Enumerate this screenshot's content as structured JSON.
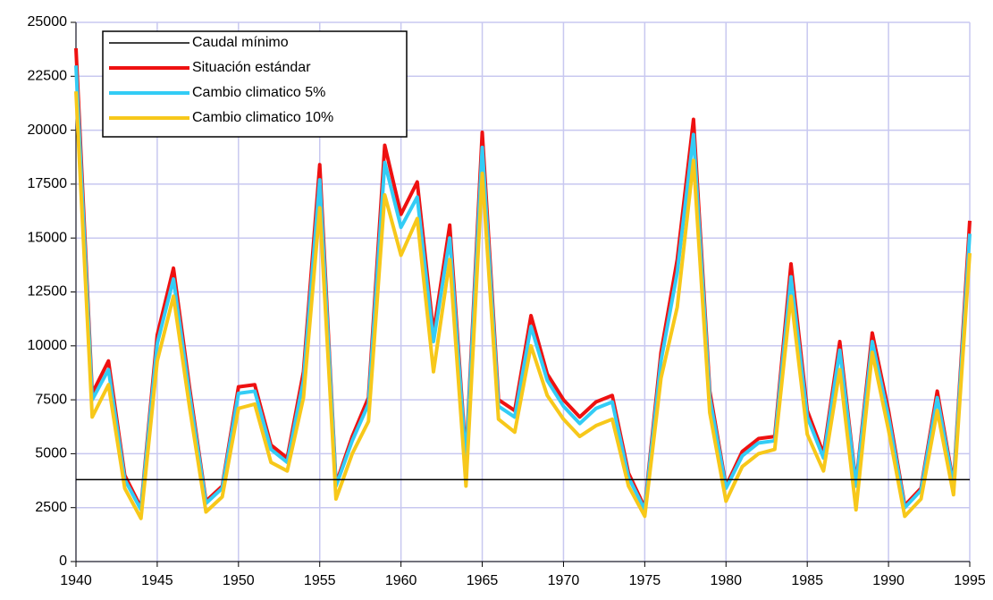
{
  "chart_data": {
    "type": "line",
    "x": [
      1940,
      1941,
      1942,
      1943,
      1944,
      1945,
      1946,
      1947,
      1948,
      1949,
      1950,
      1951,
      1952,
      1953,
      1954,
      1955,
      1956,
      1957,
      1958,
      1959,
      1960,
      1961,
      1962,
      1963,
      1964,
      1965,
      1966,
      1967,
      1968,
      1969,
      1970,
      1971,
      1972,
      1973,
      1974,
      1975,
      1976,
      1977,
      1978,
      1979,
      1980,
      1981,
      1982,
      1983,
      1984,
      1985,
      1986,
      1987,
      1988,
      1989,
      1990,
      1991,
      1992,
      1993,
      1994,
      1995
    ],
    "series": [
      {
        "name": "Caudal mínimo",
        "color": "#000000",
        "width": 1.5,
        "values": [
          3800,
          3800,
          3800,
          3800,
          3800,
          3800,
          3800,
          3800,
          3800,
          3800,
          3800,
          3800,
          3800,
          3800,
          3800,
          3800,
          3800,
          3800,
          3800,
          3800,
          3800,
          3800,
          3800,
          3800,
          3800,
          3800,
          3800,
          3800,
          3800,
          3800,
          3800,
          3800,
          3800,
          3800,
          3800,
          3800,
          3800,
          3800,
          3800,
          3800,
          3800,
          3800,
          3800,
          3800,
          3800,
          3800,
          3800,
          3800,
          3800,
          3800,
          3800,
          3800,
          3800,
          3800,
          3800,
          3800
        ]
      },
      {
        "name": "Situación estándar",
        "color": "#ee1111",
        "width": 4,
        "values": [
          23800,
          7800,
          9300,
          4000,
          2500,
          10500,
          13600,
          8000,
          2800,
          3500,
          8100,
          8200,
          5400,
          4800,
          8800,
          18400,
          3600,
          5800,
          7600,
          19300,
          16100,
          17600,
          10600,
          15600,
          4800,
          19900,
          7500,
          7000,
          11400,
          8700,
          7500,
          6700,
          7400,
          7700,
          4100,
          2500,
          9700,
          14000,
          20500,
          7900,
          3500,
          5100,
          5700,
          5800,
          13800,
          7000,
          5000,
          10200,
          3600,
          10600,
          7000,
          2600,
          3400,
          7900,
          3600,
          15800
        ]
      },
      {
        "name": "Cambio climatico 5%",
        "color": "#33ccf5",
        "width": 4,
        "values": [
          23000,
          7500,
          8900,
          3800,
          2400,
          10100,
          13100,
          7700,
          2700,
          3400,
          7800,
          7900,
          5200,
          4600,
          8400,
          17700,
          3500,
          5600,
          7300,
          18500,
          15500,
          16900,
          10200,
          15000,
          4600,
          19200,
          7200,
          6700,
          10900,
          8400,
          7200,
          6400,
          7100,
          7400,
          3900,
          2400,
          9300,
          13400,
          19800,
          7600,
          3400,
          4900,
          5500,
          5600,
          13200,
          6700,
          4800,
          9800,
          3500,
          10200,
          6700,
          2500,
          3300,
          7600,
          3500,
          15200
        ]
      },
      {
        "name": "Cambio climatico 10%",
        "color": "#f7c81a",
        "width": 4,
        "values": [
          21800,
          6700,
          8200,
          3400,
          2000,
          9300,
          12300,
          7100,
          2300,
          3000,
          7100,
          7300,
          4600,
          4200,
          7600,
          16400,
          2900,
          5000,
          6500,
          17000,
          14200,
          15900,
          8800,
          14000,
          3500,
          18000,
          6600,
          6000,
          10000,
          7700,
          6600,
          5800,
          6300,
          6600,
          3500,
          2100,
          8500,
          11800,
          18600,
          6900,
          2800,
          4400,
          5000,
          5200,
          12300,
          5900,
          4200,
          8900,
          2400,
          9700,
          6100,
          2100,
          2900,
          7000,
          3100,
          14300
        ]
      }
    ],
    "xlim": [
      1940,
      1995
    ],
    "xticks": [
      1940,
      1945,
      1950,
      1955,
      1960,
      1965,
      1970,
      1975,
      1980,
      1985,
      1990,
      1995
    ],
    "ylim": [
      0,
      25000
    ],
    "yticks": [
      0,
      2500,
      5000,
      7500,
      10000,
      12500,
      15000,
      17500,
      20000,
      22500,
      25000
    ],
    "grid": true,
    "legend": "top-left"
  }
}
